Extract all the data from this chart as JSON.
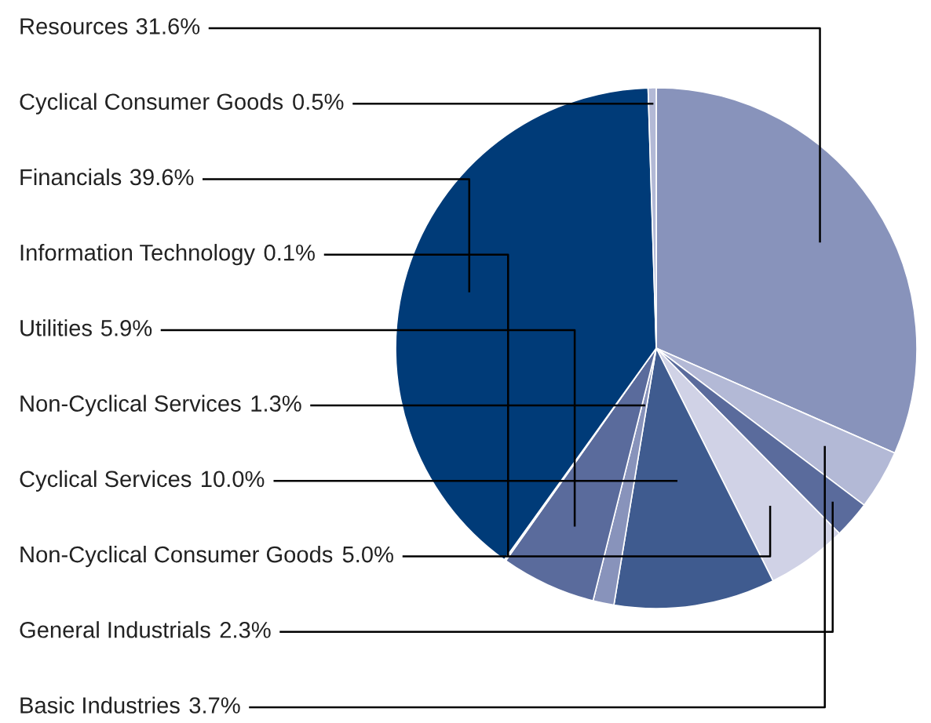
{
  "chart_data": {
    "type": "pie",
    "categories": [
      "Resources",
      "Basic Industries",
      "General Industrials",
      "Non-Cyclical Consumer Goods",
      "Cyclical Services",
      "Non-Cyclical Services",
      "Utilities",
      "Information Technology",
      "Financials",
      "Cyclical Consumer Goods"
    ],
    "values": [
      31.6,
      3.7,
      2.3,
      5.0,
      10.0,
      1.3,
      5.9,
      0.1,
      39.6,
      0.5
    ],
    "colors": [
      "#8893bb",
      "#b3b9d6",
      "#5a6b9c",
      "#d0d2e6",
      "#3f5b8f",
      "#8893bb",
      "#5a6b9c",
      "#c9cde3",
      "#003b78",
      "#b3b9d6"
    ],
    "value_labels": [
      "31.6%",
      "3.7%",
      "2.3%",
      "5.0%",
      "10.0%",
      "1.3%",
      "5.9%",
      "0.1%",
      "39.6%",
      "0.5%"
    ]
  }
}
